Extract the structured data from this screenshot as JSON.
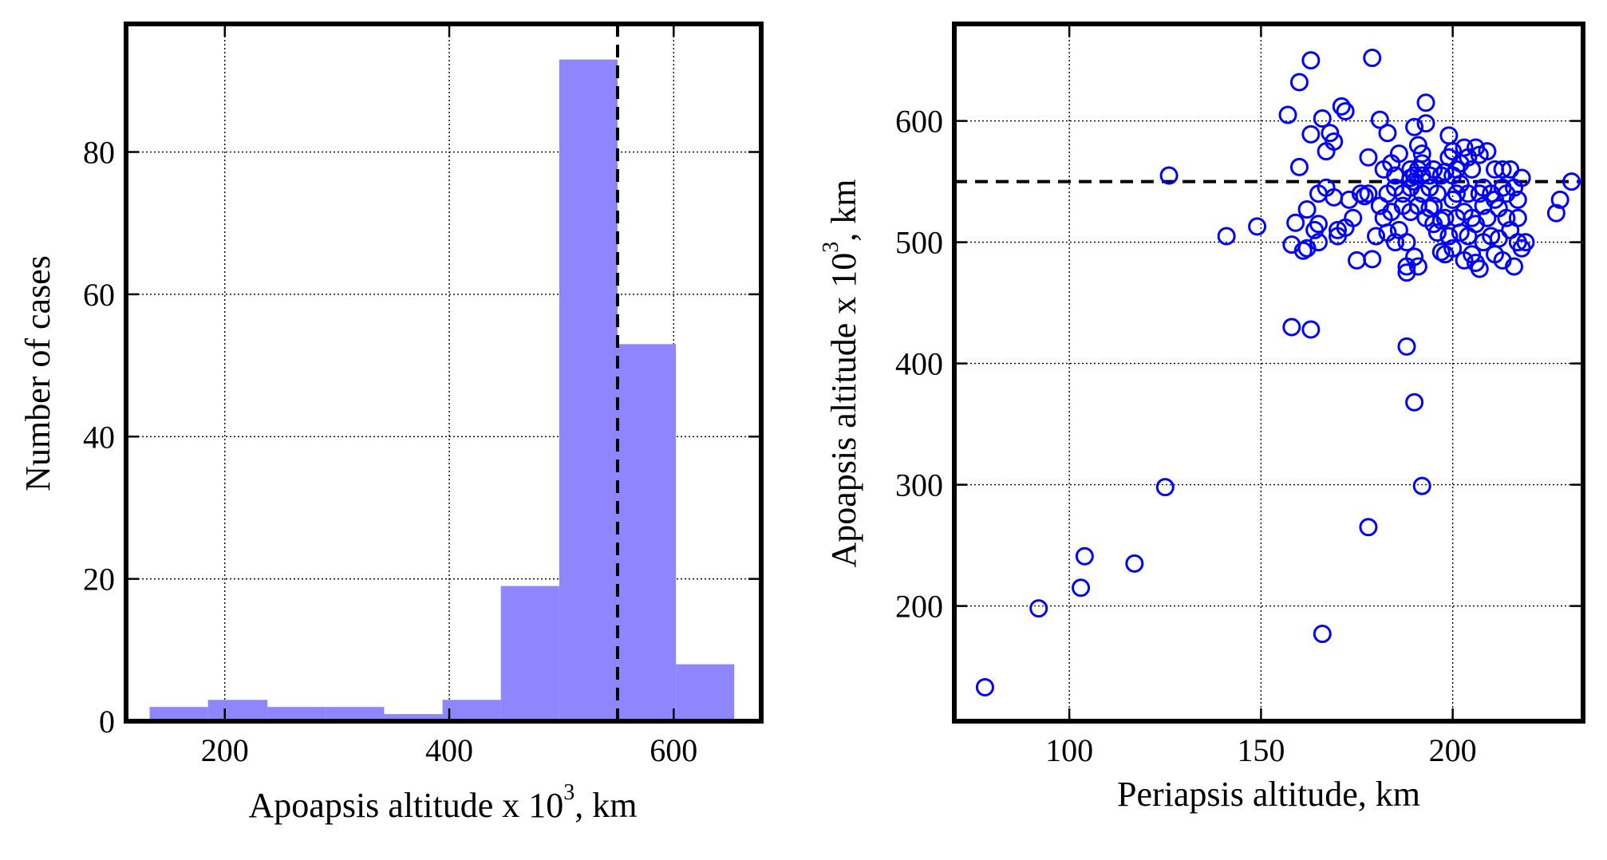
{
  "chart_data": [
    {
      "type": "bar",
      "subtype": "histogram",
      "xlabel": "Apoapsis altitude x 10",
      "xlabel_exp": "3",
      "xlabel_unit": ", km",
      "ylabel": "Number of cases",
      "xlim": [
        112,
        678
      ],
      "ylim": [
        0,
        98
      ],
      "xticks": [
        200,
        400,
        600
      ],
      "yticks": [
        0,
        20,
        40,
        60,
        80
      ],
      "grid": true,
      "color": "#8f86fe",
      "bins": [
        {
          "x0": 133,
          "x1": 185,
          "value": 2
        },
        {
          "x0": 185,
          "x1": 238,
          "value": 3
        },
        {
          "x0": 238,
          "x1": 290,
          "value": 2
        },
        {
          "x0": 290,
          "x1": 342,
          "value": 2
        },
        {
          "x0": 342,
          "x1": 394,
          "value": 1
        },
        {
          "x0": 394,
          "x1": 446,
          "value": 3
        },
        {
          "x0": 446,
          "x1": 498,
          "value": 19
        },
        {
          "x0": 498,
          "x1": 550,
          "value": 93
        },
        {
          "x0": 550,
          "x1": 602,
          "value": 53
        },
        {
          "x0": 602,
          "x1": 654,
          "value": 8
        }
      ],
      "reference_line": {
        "orientation": "vertical",
        "value": 550,
        "style": "dashed"
      }
    },
    {
      "type": "scatter",
      "xlabel": "Periapsis altitude, km",
      "ylabel": "Apoapsis altitude x 10",
      "ylabel_exp": "3",
      "ylabel_unit": ", km",
      "xlim": [
        70,
        234
      ],
      "ylim": [
        105,
        680
      ],
      "xticks": [
        100,
        150,
        200
      ],
      "yticks": [
        200,
        300,
        400,
        500,
        600
      ],
      "grid": true,
      "marker": "open-circle",
      "color": "#0000ff",
      "reference_line": {
        "orientation": "horizontal",
        "value": 550,
        "style": "dashed"
      },
      "points": [
        [
          78,
          133
        ],
        [
          92,
          198
        ],
        [
          103,
          215
        ],
        [
          104,
          241
        ],
        [
          117,
          235
        ],
        [
          125,
          298
        ],
        [
          126,
          555
        ],
        [
          141,
          505
        ],
        [
          149,
          513
        ],
        [
          157,
          605
        ],
        [
          158,
          498
        ],
        [
          158,
          430
        ],
        [
          159,
          516
        ],
        [
          160,
          562
        ],
        [
          160,
          632
        ],
        [
          161,
          493
        ],
        [
          162,
          527
        ],
        [
          162,
          495
        ],
        [
          163,
          589
        ],
        [
          163,
          428
        ],
        [
          163,
          650
        ],
        [
          164,
          510
        ],
        [
          165,
          540
        ],
        [
          165,
          515
        ],
        [
          165,
          500
        ],
        [
          166,
          177
        ],
        [
          166,
          602
        ],
        [
          167,
          545
        ],
        [
          167,
          575
        ],
        [
          168,
          590
        ],
        [
          169,
          583
        ],
        [
          169,
          537
        ],
        [
          170,
          510
        ],
        [
          170,
          505
        ],
        [
          171,
          612
        ],
        [
          172,
          608
        ],
        [
          172,
          512
        ],
        [
          173,
          535
        ],
        [
          174,
          520
        ],
        [
          175,
          485
        ],
        [
          176,
          540
        ],
        [
          177,
          538
        ],
        [
          178,
          265
        ],
        [
          178,
          570
        ],
        [
          178,
          540
        ],
        [
          179,
          652
        ],
        [
          179,
          486
        ],
        [
          180,
          505
        ],
        [
          181,
          530
        ],
        [
          181,
          601
        ],
        [
          182,
          560
        ],
        [
          182,
          520
        ],
        [
          183,
          590
        ],
        [
          183,
          540
        ],
        [
          183,
          508
        ],
        [
          184,
          565
        ],
        [
          184,
          525
        ],
        [
          185,
          500
        ],
        [
          185,
          545
        ],
        [
          185,
          555
        ],
        [
          186,
          510
        ],
        [
          186,
          573
        ],
        [
          187,
          530
        ],
        [
          187,
          540
        ],
        [
          188,
          480
        ],
        [
          188,
          500
        ],
        [
          188,
          414
        ],
        [
          188,
          475
        ],
        [
          189,
          560
        ],
        [
          189,
          525
        ],
        [
          189,
          545
        ],
        [
          189,
          553
        ],
        [
          190,
          368
        ],
        [
          190,
          555
        ],
        [
          190,
          595
        ],
        [
          190,
          550
        ],
        [
          190,
          488
        ],
        [
          191,
          580
        ],
        [
          191,
          530
        ],
        [
          191,
          560
        ],
        [
          191,
          480
        ],
        [
          192,
          573
        ],
        [
          192,
          540
        ],
        [
          192,
          555
        ],
        [
          192,
          299
        ],
        [
          192,
          565
        ],
        [
          193,
          615
        ],
        [
          193,
          598
        ],
        [
          193,
          520
        ],
        [
          194,
          545
        ],
        [
          194,
          555
        ],
        [
          194,
          528
        ],
        [
          195,
          530
        ],
        [
          195,
          560
        ],
        [
          195,
          515
        ],
        [
          196,
          508
        ],
        [
          196,
          540
        ],
        [
          197,
          492
        ],
        [
          197,
          518
        ],
        [
          197,
          555
        ],
        [
          198,
          558
        ],
        [
          198,
          520
        ],
        [
          198,
          490
        ],
        [
          199,
          570
        ],
        [
          199,
          505
        ],
        [
          199,
          588
        ],
        [
          200,
          535
        ],
        [
          200,
          555
        ],
        [
          200,
          495
        ],
        [
          200,
          575
        ],
        [
          201,
          560
        ],
        [
          201,
          520
        ],
        [
          201,
          540
        ],
        [
          202,
          548
        ],
        [
          202,
          565
        ],
        [
          202,
          508
        ],
        [
          203,
          485
        ],
        [
          203,
          525
        ],
        [
          203,
          578
        ],
        [
          204,
          570
        ],
        [
          204,
          540
        ],
        [
          204,
          505
        ],
        [
          205,
          520
        ],
        [
          205,
          490
        ],
        [
          205,
          560
        ],
        [
          206,
          483
        ],
        [
          206,
          515
        ],
        [
          206,
          578
        ],
        [
          207,
          572
        ],
        [
          207,
          540
        ],
        [
          207,
          478
        ],
        [
          208,
          530
        ],
        [
          208,
          500
        ],
        [
          208,
          545
        ],
        [
          209,
          575
        ],
        [
          209,
          520
        ],
        [
          210,
          540
        ],
        [
          210,
          505
        ],
        [
          211,
          490
        ],
        [
          211,
          535
        ],
        [
          211,
          560
        ],
        [
          212,
          528
        ],
        [
          212,
          503
        ],
        [
          213,
          545
        ],
        [
          213,
          560
        ],
        [
          213,
          485
        ],
        [
          214,
          540
        ],
        [
          214,
          520
        ],
        [
          215,
          510
        ],
        [
          215,
          560
        ],
        [
          216,
          480
        ],
        [
          216,
          545
        ],
        [
          217,
          500
        ],
        [
          217,
          520
        ],
        [
          217,
          535
        ],
        [
          218,
          553
        ],
        [
          218,
          495
        ],
        [
          219,
          500
        ],
        [
          227,
          524
        ],
        [
          228,
          535
        ],
        [
          231,
          550
        ]
      ]
    }
  ]
}
